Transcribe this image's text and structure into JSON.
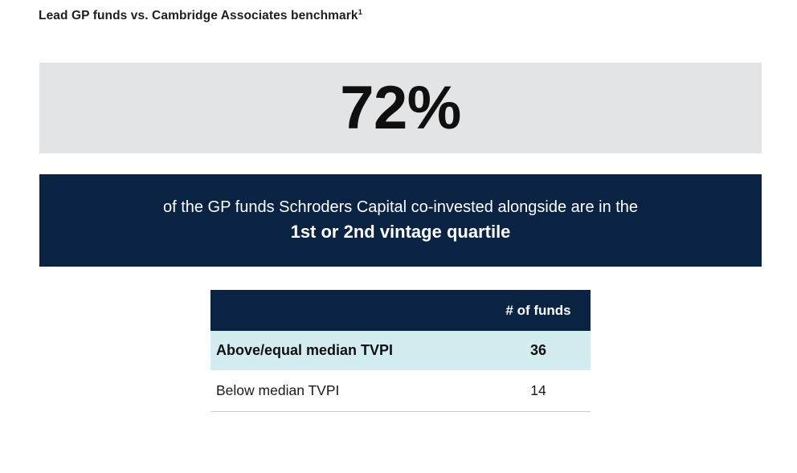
{
  "header": {
    "title": "Lead GP funds vs. Cambridge Associates benchmark",
    "footnote_marker": "1"
  },
  "highlight": {
    "value": "72%",
    "line1": "of the GP funds Schroders Capital co-invested alongside are in the",
    "line2": "1st or 2nd vintage quartile"
  },
  "table": {
    "columns": [
      "",
      "# of funds"
    ],
    "rows": [
      {
        "label": "Above/equal median TVPI",
        "value": "36"
      },
      {
        "label": "Below median TVPI",
        "value": "14"
      }
    ]
  },
  "colors": {
    "navy": "#0a2342",
    "banner_gray": "#e2e4e6",
    "row_highlight_cyan": "#d2ecf0",
    "table_bottom_rule": "#c9cccd",
    "text_dark": "#1e1e1e",
    "text_white": "#ffffff"
  },
  "chart_data": {
    "type": "table",
    "title": "Lead GP funds vs. Cambridge Associates benchmark",
    "headline_metric": {
      "value_pct": 72,
      "description": "of the GP funds Schroders Capital co-invested alongside are in the 1st or 2nd vintage quartile"
    },
    "columns": [
      "",
      "# of funds"
    ],
    "rows": [
      [
        "Above/equal median TVPI",
        36
      ],
      [
        "Below median TVPI",
        14
      ]
    ]
  }
}
